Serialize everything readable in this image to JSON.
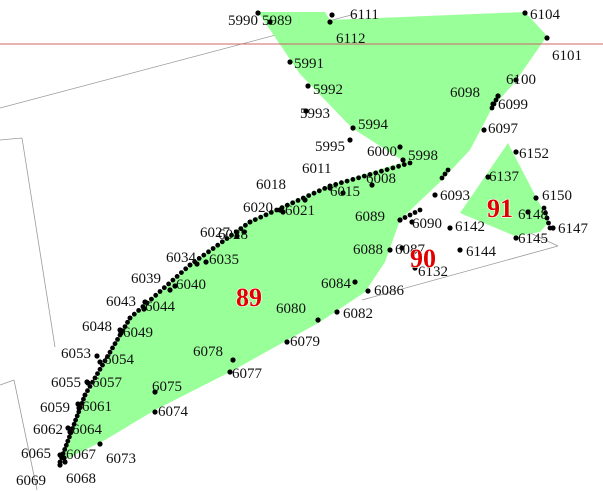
{
  "colors": {
    "parcel_fill": "#99ff99",
    "vertex": "#000000",
    "parcel_label": "#e00000",
    "boundary_line": "#999999",
    "reference_line": "#cc6666"
  },
  "parcels": [
    {
      "id": "89"
    },
    {
      "id": "90"
    },
    {
      "id": "91"
    }
  ],
  "points": [
    "5990",
    "5989",
    "6111",
    "6104",
    "6112",
    "6101",
    "5991",
    "6100",
    "5992",
    "6098",
    "6099",
    "5993",
    "5994",
    "6097",
    "5995",
    "6000",
    "5998",
    "6152",
    "6011",
    "6137",
    "6008",
    "6018",
    "6015",
    "6093",
    "6150",
    "6020",
    "6021",
    "6148",
    "6147",
    "6089",
    "6090",
    "6142",
    "6145",
    "6028",
    "6027",
    "6088",
    "6087",
    "6144",
    "6034",
    "6035",
    "6132",
    "6040",
    "6039",
    "6084",
    "6086",
    "6043",
    "6044",
    "6082",
    "6080",
    "6048",
    "6049",
    "6079",
    "6053",
    "6054",
    "6078",
    "6055",
    "6057",
    "6077",
    "6075",
    "6059",
    "6061",
    "6074",
    "6062",
    "6064",
    "6065",
    "6067",
    "6073",
    "6069",
    "6068"
  ]
}
